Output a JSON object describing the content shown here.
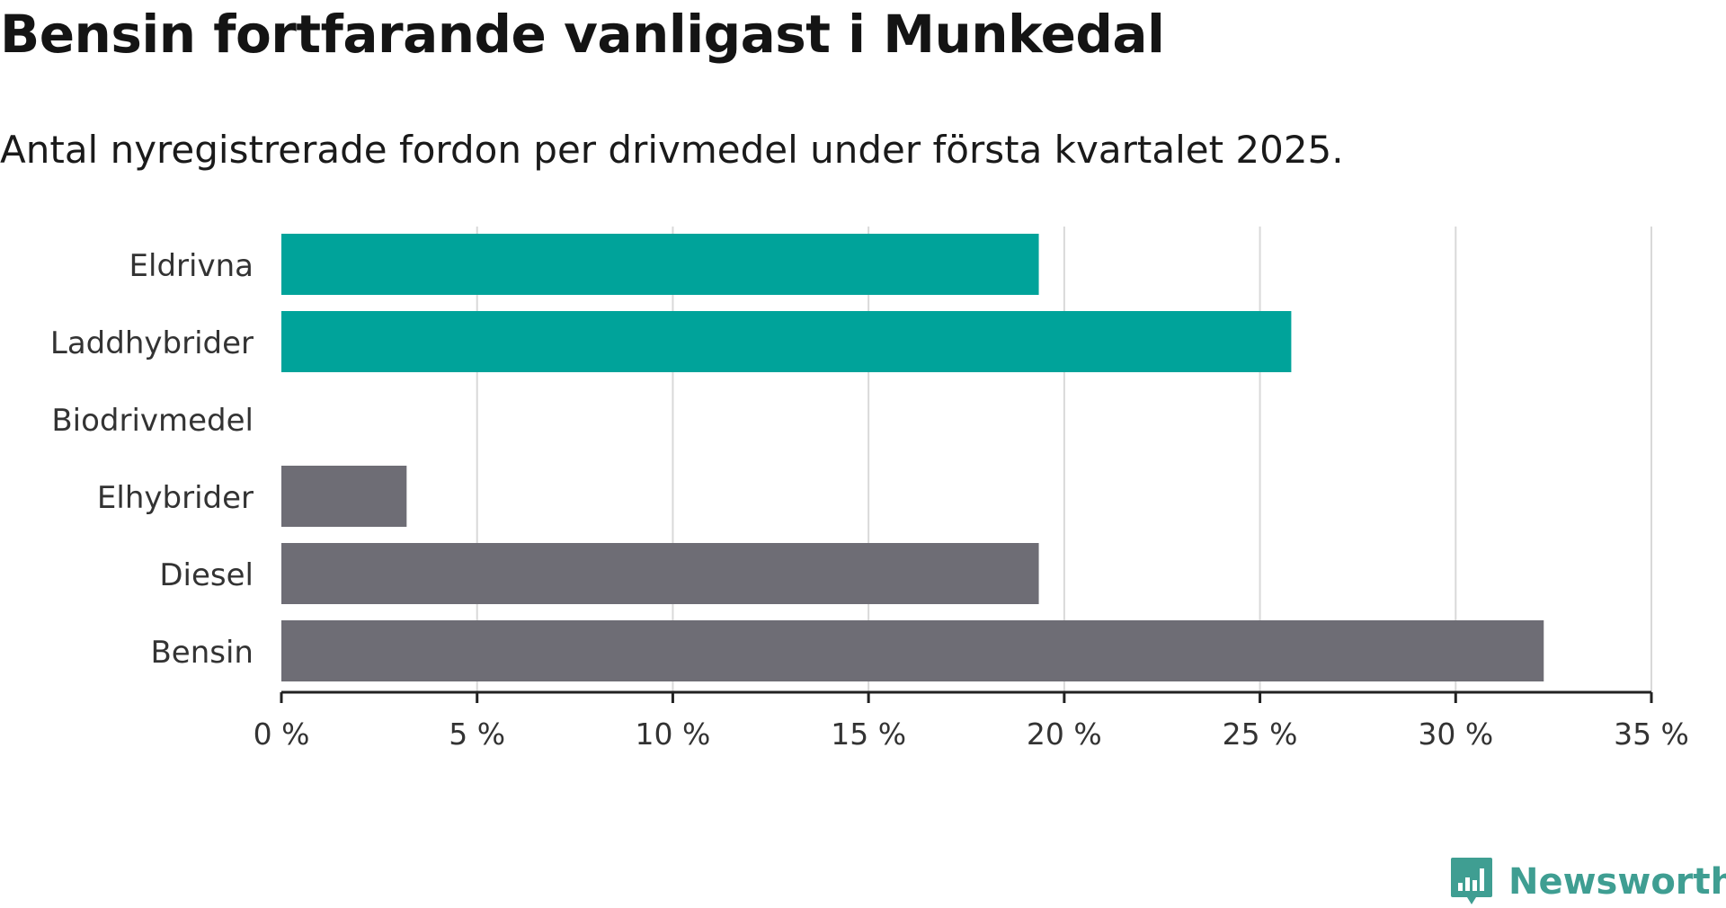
{
  "header": {
    "title": "Bensin fortfarande vanligast i Munkedal",
    "subtitle": "Antal nyregistrerade fordon per drivmedel under första kvartalet 2025."
  },
  "chart_data": {
    "type": "bar",
    "orientation": "horizontal",
    "title": "Bensin fortfarande vanligast i Munkedal",
    "subtitle": "Antal nyregistrerade fordon per drivmedel under första kvartalet 2025.",
    "xlabel": "",
    "ylabel": "",
    "categories": [
      "Eldrivna",
      "Laddhybrider",
      "Biodrivmedel",
      "Elhybrider",
      "Diesel",
      "Bensin"
    ],
    "values": [
      19.35,
      25.8,
      0,
      3.2,
      19.35,
      32.25
    ],
    "colors": [
      "#00a39a",
      "#00a39a",
      "#00a39a",
      "#6e6d75",
      "#6e6d75",
      "#6e6d75"
    ],
    "xlim": [
      0,
      35
    ],
    "xticks": [
      0,
      5,
      10,
      15,
      20,
      25,
      30,
      35
    ],
    "xtick_labels": [
      "0 %",
      "5 %",
      "10 %",
      "15 %",
      "20 %",
      "25 %",
      "30 %",
      "35 %"
    ],
    "grid": "vertical",
    "legend": "none"
  },
  "branding": {
    "logo_text": "Newsworthy",
    "logo_icon": "newsworthy-bar-chart-icon",
    "color": "#3f9e92"
  }
}
